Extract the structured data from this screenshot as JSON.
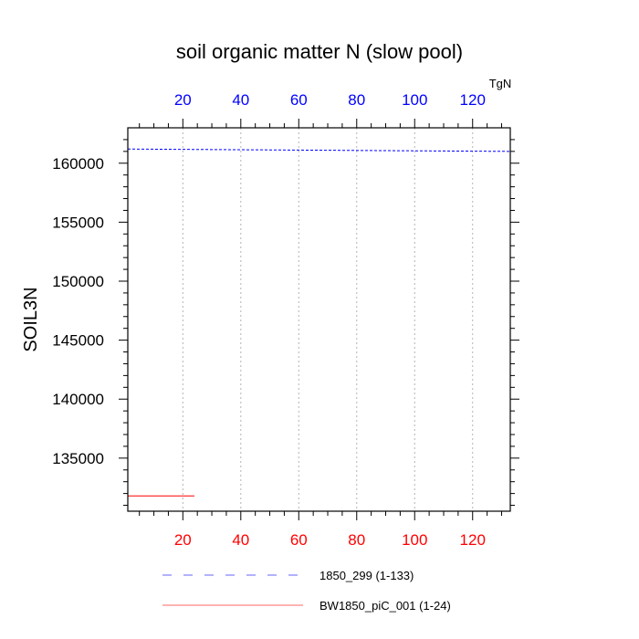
{
  "chart_data": {
    "type": "line",
    "title": "soil organic matter N (slow pool)",
    "ylabel": "SOIL3N",
    "units": "TgN",
    "xlim": [
      1,
      133
    ],
    "ylim": [
      130500,
      163000
    ],
    "grid": "vertical dotted",
    "top_axis_color": "#0000ff",
    "bottom_axis_color": "#ff0000",
    "x_ticks": [
      20,
      40,
      60,
      80,
      100,
      120
    ],
    "y_ticks": [
      135000,
      140000,
      145000,
      150000,
      155000,
      160000
    ],
    "series": [
      {
        "name": "1850_299 (1-133)",
        "color": "#0000ff",
        "style": "dashed",
        "x": [
          1,
          133
        ],
        "values": [
          161200,
          161000
        ]
      },
      {
        "name": "BW1850_piC_001 (1-24)",
        "color": "#ff0000",
        "style": "solid",
        "x": [
          1,
          24
        ],
        "values": [
          131800,
          131800
        ]
      }
    ],
    "legend_placement": "bottom"
  }
}
